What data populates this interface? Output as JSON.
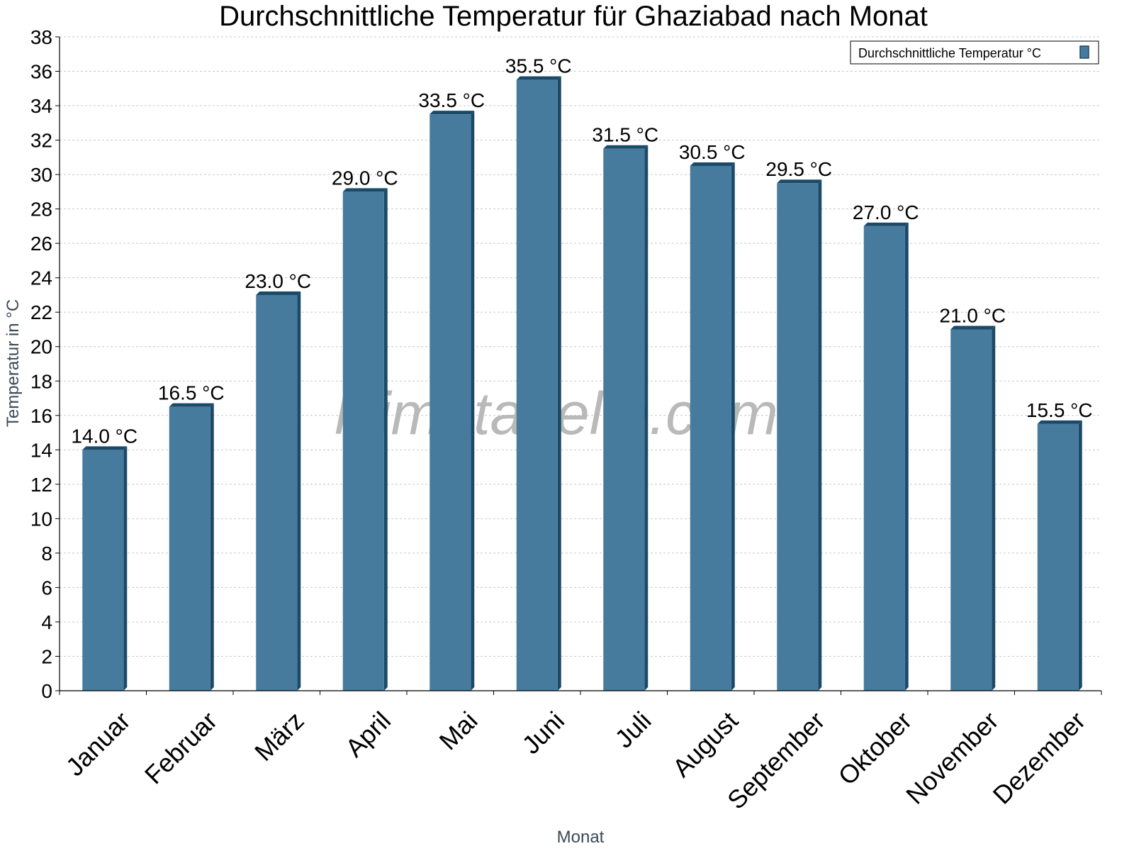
{
  "chart_data": {
    "type": "bar",
    "title": "Durchschnittliche Temperatur für Ghaziabad nach Monat",
    "xlabel": "Monat",
    "ylabel": "Temperatur in °C",
    "categories": [
      "Januar",
      "Februar",
      "März",
      "April",
      "Mai",
      "Juni",
      "Juli",
      "August",
      "September",
      "Oktober",
      "November",
      "Dezember"
    ],
    "series": [
      {
        "name": "Durchschnittliche Temperatur °C",
        "values": [
          14.0,
          16.5,
          23.0,
          29.0,
          33.5,
          35.5,
          31.5,
          30.5,
          29.5,
          27.0,
          21.0,
          15.5
        ],
        "labels": [
          "14.0 °C",
          "16.5 °C",
          "23.0 °C",
          "29.0 °C",
          "33.5 °C",
          "35.5 °C",
          "31.5 °C",
          "30.5 °C",
          "29.5 °C",
          "27.0 °C",
          "21.0 °C",
          "15.5 °C"
        ],
        "color": "#467b9d",
        "shade_color": "#1b4a69"
      }
    ],
    "ylim": [
      0,
      38
    ],
    "yticks": [
      "0",
      "2",
      "4",
      "6",
      "8",
      "10",
      "12",
      "14",
      "16",
      "18",
      "20",
      "22",
      "24",
      "26",
      "28",
      "30",
      "32",
      "34",
      "36",
      "38"
    ],
    "grid": true,
    "legend_position": "top-right",
    "watermark": "klimatabelle.com"
  }
}
